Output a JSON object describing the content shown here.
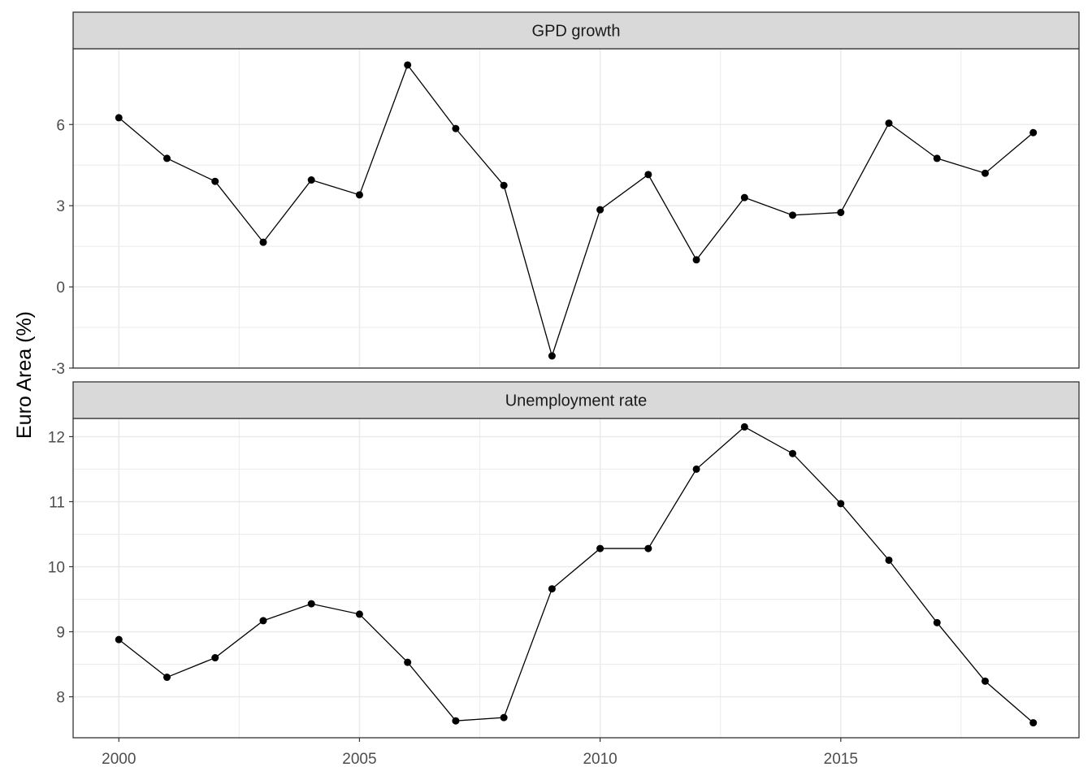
{
  "chart_data": {
    "type": "line",
    "ylabel": "Euro Area (%)",
    "xlabel": "",
    "x_ticks": [
      "2000",
      "2005",
      "2010",
      "2015"
    ],
    "grid": true,
    "theme": "bw-faceted",
    "colors": {
      "series": "#000000",
      "strip_fill": "#d9d9d9",
      "grid": "#ebebeb",
      "border": "#333333"
    },
    "x": [
      2000,
      2001,
      2002,
      2003,
      2004,
      2005,
      2006,
      2007,
      2008,
      2009,
      2010,
      2011,
      2012,
      2013,
      2014,
      2015,
      2016,
      2017,
      2018,
      2019
    ],
    "panels": [
      {
        "title": "GPD growth",
        "yticks": [
          -3,
          0,
          3,
          6
        ],
        "y_tick_labels": [
          "-3",
          "0",
          "3",
          "6"
        ],
        "ylim": [
          -3.0,
          8.8
        ],
        "values": [
          6.25,
          4.75,
          3.9,
          1.65,
          3.95,
          3.4,
          8.2,
          5.85,
          3.75,
          -2.55,
          2.85,
          4.15,
          1.0,
          3.3,
          2.65,
          2.75,
          6.05,
          4.75,
          4.2,
          5.7
        ]
      },
      {
        "title": "Unemployment rate",
        "yticks": [
          8,
          9,
          10,
          11,
          12
        ],
        "y_tick_labels": [
          "8",
          "9",
          "10",
          "11",
          "12"
        ],
        "ylim": [
          7.37,
          12.28
        ],
        "values": [
          8.88,
          8.3,
          8.6,
          9.17,
          9.43,
          9.27,
          8.53,
          7.63,
          7.68,
          9.66,
          10.28,
          10.28,
          11.5,
          12.15,
          11.74,
          10.97,
          10.1,
          9.14,
          8.24,
          7.6
        ]
      }
    ]
  }
}
